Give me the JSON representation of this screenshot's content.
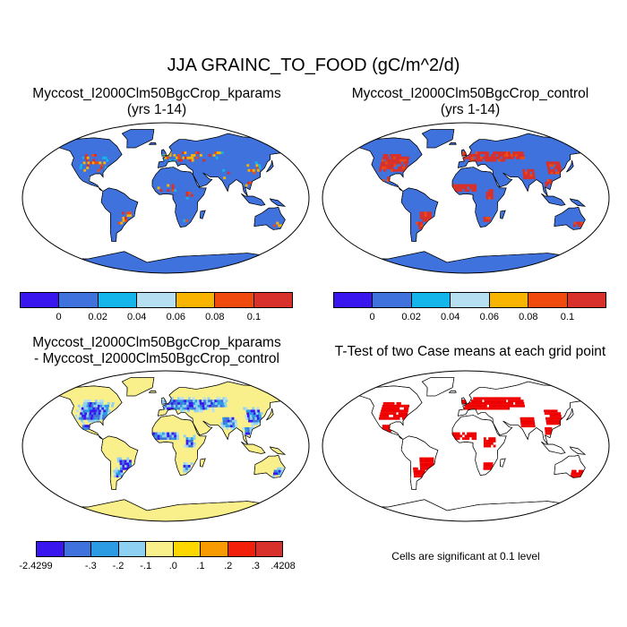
{
  "title": "JJA GRAINC_TO_FOOD (gC/m^2/d)",
  "panels": {
    "top_left": {
      "title_line1": "Myccost_I2000Clm50BgcCrop_kparams",
      "title_line2": "(yrs 1-14)"
    },
    "top_right": {
      "title_line1": "Myccost_I2000Clm50BgcCrop_control",
      "title_line2": "(yrs 1-14)"
    },
    "bottom_left": {
      "title_line1": "Myccost_I2000Clm50BgcCrop_kparams",
      "title_line2": "- Myccost_I2000Clm50BgcCrop_control"
    },
    "bottom_right": {
      "title_line1": "T-Test of two Case means at each grid point",
      "note": "Cells are significant at 0.1 level"
    }
  },
  "colorbar_top": {
    "colors": [
      "#3a16ee",
      "#3f72dc",
      "#13b5ea",
      "#b6e0f2",
      "#f9b400",
      "#f04a0f",
      "#d8302b"
    ],
    "labels": [
      "0",
      "0.02",
      "0.04",
      "0.06",
      "0.08",
      "0.1"
    ]
  },
  "colorbar_diff": {
    "colors": [
      "#3a16ee",
      "#3f72dc",
      "#2c9be3",
      "#8dd0f1",
      "#faf08b",
      "#fcd800",
      "#f79b00",
      "#f2200a",
      "#d8302b"
    ],
    "labels": [
      "-2.4299",
      "-.3",
      "-.2",
      "-.1",
      ".0",
      ".1",
      ".2",
      ".3",
      ".4208"
    ]
  },
  "colors": {
    "ocean": "#ffffff",
    "land_low": "#3f72dc",
    "land_high": "#d8302b",
    "diff_neutral": "#faf08b",
    "diff_neg": "#3a16ee",
    "signif": "#ee0000"
  }
}
